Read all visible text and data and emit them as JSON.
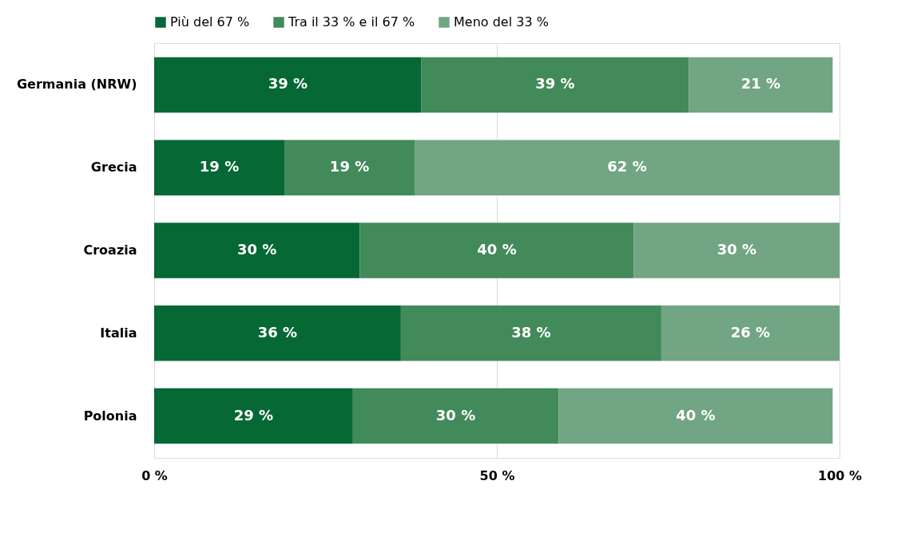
{
  "chart_data": {
    "type": "bar",
    "orientation": "horizontal",
    "stacked": true,
    "categories": [
      "Germania (NRW)",
      "Grecia",
      "Croazia",
      "Italia",
      "Polonia"
    ],
    "series": [
      {
        "name": "Più del 67 %",
        "color": "#056835",
        "values": [
          39,
          19,
          30,
          36,
          29
        ],
        "value_labels": [
          "39 %",
          "19 %",
          "30 %",
          "36 %",
          "29 %"
        ]
      },
      {
        "name": "Tra il 33 % e il 67 %",
        "color": "#428a5a",
        "values": [
          39,
          19,
          40,
          38,
          30
        ],
        "value_labels": [
          "39 %",
          "19 %",
          "40 %",
          "38 %",
          "30 %"
        ]
      },
      {
        "name": "Meno del 33 %",
        "color": "#71a583",
        "values": [
          21,
          62,
          30,
          26,
          40
        ],
        "value_labels": [
          "21 %",
          "62 %",
          "30 %",
          "26 %",
          "40 %"
        ]
      }
    ],
    "xlim": [
      0,
      100
    ],
    "xticks": [
      {
        "value": 0,
        "label": "0 %"
      },
      {
        "value": 50,
        "label": "50 %"
      },
      {
        "value": 100,
        "label": "100 %"
      }
    ],
    "grid": "x",
    "legend": "top"
  }
}
